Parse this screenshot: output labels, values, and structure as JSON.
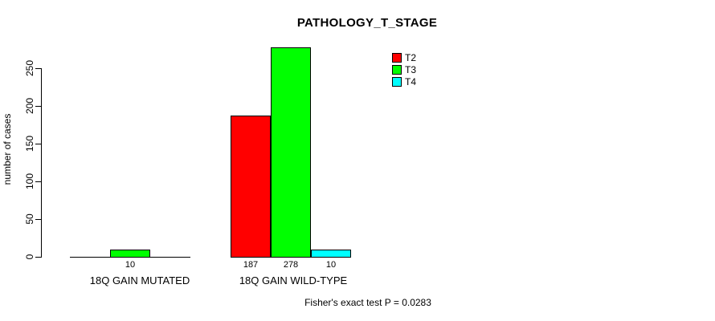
{
  "chart_data": {
    "type": "bar",
    "title": "PATHOLOGY_T_STAGE",
    "ylabel": "number of cases",
    "xlabel": "",
    "categories": [
      "18Q GAIN MUTATED",
      "18Q GAIN WILD-TYPE"
    ],
    "series": [
      {
        "name": "T2",
        "color": "#ff0000",
        "values": [
          0,
          187
        ]
      },
      {
        "name": "T3",
        "color": "#00ff00",
        "values": [
          10,
          278
        ]
      },
      {
        "name": "T4",
        "color": "#00ffff",
        "values": [
          0,
          10
        ]
      }
    ],
    "bar_labels": [
      [
        "",
        "10",
        ""
      ],
      [
        "187",
        "278",
        "10"
      ]
    ],
    "yticks": [
      0,
      50,
      100,
      150,
      200,
      250
    ],
    "ylim": [
      0,
      278
    ],
    "grid": false,
    "legend_position": "top-right",
    "annotation": "Fisher's exact test P = 0.0283",
    "axis_color": "#000000",
    "background_color": "#ffffff"
  }
}
